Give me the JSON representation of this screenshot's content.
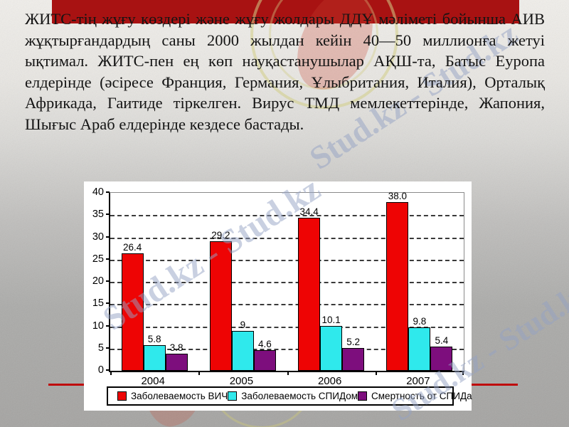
{
  "slide": {
    "paragraph": "ЖИТС-тің жұғу көздері және жұғу жолдары ДДҰ мәліметі бойынша АИВ жұқтырғандардың саны 2000 жылдан кейін 40—50 миллионға жетуі ықтимал. ЖИТС-пен ең көп науқастанушылар АҚШ-та, Батыс Еуропа елдерінде (әсіресе Франция, Германия, Ұлыбритания, Италия), Орталық Африкада, Гаитиде тіркелген. Вирус ТМД мемлекеттерінде, Жапония, Шығыс Араб елдерінде кездесе бастады.",
    "accent_bar_color": "#a81212",
    "divider_line_color": "#bf0b0b",
    "background_color_top": "#f1efeb",
    "background_color_bottom": "#a5a4a2"
  },
  "watermark": {
    "text_long": "Stud.kz - Stud.kz",
    "text_short": "Stud.kz",
    "color": "#94a2c4"
  },
  "chart_data": {
    "type": "bar",
    "title": "",
    "xlabel": "",
    "ylabel": "",
    "categories": [
      "2004",
      "2005",
      "2006",
      "2007"
    ],
    "series": [
      {
        "name": "Заболеваемость ВИЧ",
        "color": "#ee0404",
        "values": [
          26.4,
          29.2,
          34.4,
          38.0
        ],
        "labels": [
          "26.4",
          "29.2",
          "34.4",
          "38.0"
        ]
      },
      {
        "name": "Заболеваемость СПИДом",
        "color": "#2fe9ec",
        "values": [
          5.8,
          9,
          10.1,
          9.8
        ],
        "labels": [
          "5.8",
          "9",
          "10.1",
          "9.8"
        ]
      },
      {
        "name": "Смертность от СПИДа",
        "color": "#7d0e7d",
        "values": [
          3.8,
          4.6,
          5.2,
          5.4
        ],
        "labels": [
          "3.8",
          "4.6",
          "5.2",
          "5.4"
        ]
      }
    ],
    "ylim": [
      0,
      40
    ],
    "yticks": [
      0,
      5,
      10,
      15,
      20,
      25,
      30,
      35,
      40
    ],
    "grid": "horizontal dashed lines at each tick between 5 and 35",
    "legend_position": "bottom",
    "plot_background": "#ffffff"
  }
}
